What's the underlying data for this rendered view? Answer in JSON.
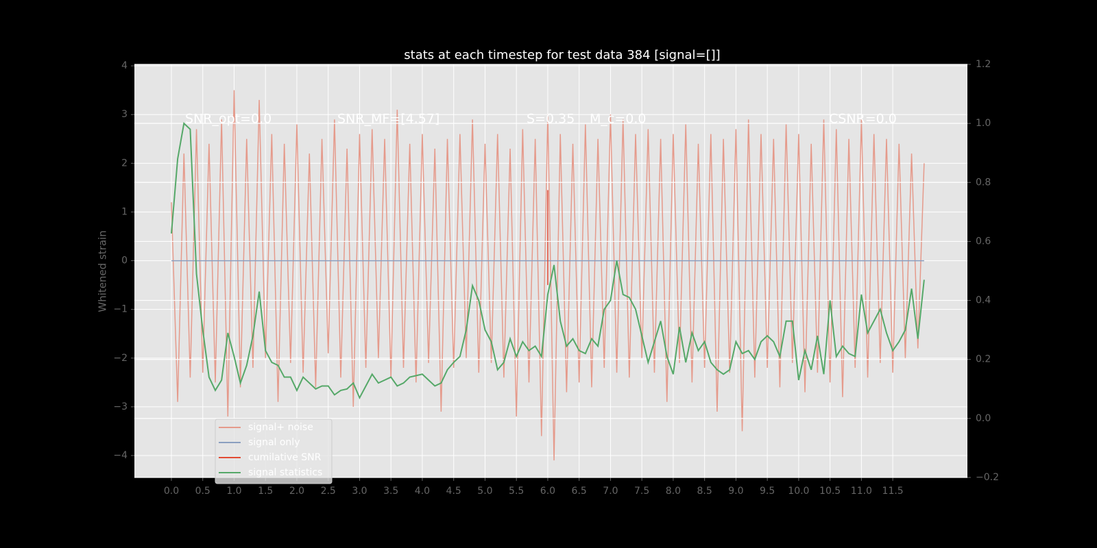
{
  "chart_data": {
    "type": "line",
    "title": "stats at each timestep for test data 384 [signal=[]]",
    "ylabel": "Whitened strain",
    "annotations": [
      "SNR_opt=0.0",
      "SNR_MF=[4.57]",
      "S=0.35",
      "M_c=0.0",
      "CSNR=0.0"
    ],
    "xlim": [
      -0.59,
      12.69
    ],
    "ylim": [
      -4.45,
      4.03
    ],
    "y2lim": [
      -0.2,
      1.2
    ],
    "grid": true,
    "legend": "lower left",
    "xticks": [
      {
        "value": 0,
        "label": "0.0"
      },
      {
        "value": 0.5,
        "label": "0.5"
      },
      {
        "value": 1,
        "label": "1.0"
      },
      {
        "value": 1.5,
        "label": "1.5"
      },
      {
        "value": 2,
        "label": "2.0"
      },
      {
        "value": 2.5,
        "label": "2.5"
      },
      {
        "value": 3,
        "label": "3.0"
      },
      {
        "value": 3.5,
        "label": "3.5"
      },
      {
        "value": 4,
        "label": "4.0"
      },
      {
        "value": 4.5,
        "label": "4.5"
      },
      {
        "value": 5,
        "label": "5.0"
      },
      {
        "value": 5.5,
        "label": "5.5"
      },
      {
        "value": 6,
        "label": "6.0"
      },
      {
        "value": 6.5,
        "label": "6.5"
      },
      {
        "value": 7,
        "label": "7.0"
      },
      {
        "value": 7.5,
        "label": "7.5"
      },
      {
        "value": 8,
        "label": "8.0"
      },
      {
        "value": 8.5,
        "label": "8.5"
      },
      {
        "value": 9,
        "label": "9.0"
      },
      {
        "value": 9.5,
        "label": "9.5"
      },
      {
        "value": 10,
        "label": "10.0"
      },
      {
        "value": 10.5,
        "label": "10.5"
      },
      {
        "value": 11,
        "label": "11.0"
      },
      {
        "value": 11.5,
        "label": "11.5"
      }
    ],
    "yticks": [
      {
        "value": -4,
        "label": "−4"
      },
      {
        "value": -3,
        "label": "−3"
      },
      {
        "value": -2,
        "label": "−2"
      },
      {
        "value": -1,
        "label": "−1"
      },
      0,
      1,
      2,
      3,
      4
    ],
    "y2ticks": [
      {
        "value": -0.2,
        "label": "−0.2"
      },
      {
        "value": 0,
        "label": "0.0"
      },
      0.2,
      0.4,
      0.6,
      0.8,
      {
        "value": 1,
        "label": "1.0"
      },
      1.2
    ],
    "x": [
      0,
      0.1,
      0.2,
      0.3,
      0.4,
      0.5,
      0.6,
      0.7,
      0.8,
      0.9,
      1,
      1.1,
      1.2,
      1.3,
      1.4,
      1.5,
      1.6,
      1.7,
      1.8,
      1.9,
      2,
      2.1,
      2.2,
      2.3,
      2.4,
      2.5,
      2.6,
      2.7,
      2.8,
      2.9,
      3,
      3.1,
      3.2,
      3.3,
      3.4,
      3.5,
      3.6,
      3.7,
      3.8,
      3.9,
      4,
      4.1,
      4.2,
      4.3,
      4.4,
      4.5,
      4.6,
      4.7,
      4.8,
      4.9,
      5,
      5.1,
      5.2,
      5.3,
      5.4,
      5.5,
      5.6,
      5.7,
      5.8,
      5.9,
      6,
      6.1,
      6.2,
      6.3,
      6.4,
      6.5,
      6.6,
      6.7,
      6.8,
      6.9,
      7,
      7.1,
      7.2,
      7.3,
      7.4,
      7.5,
      7.6,
      7.7,
      7.8,
      7.9,
      8,
      8.1,
      8.2,
      8.3,
      8.4,
      8.5,
      8.6,
      8.7,
      8.8,
      8.9,
      9,
      9.1,
      9.2,
      9.3,
      9.4,
      9.5,
      9.6,
      9.7,
      9.8,
      9.9,
      10,
      10.1,
      10.2,
      10.3,
      10.4,
      10.5,
      10.6,
      10.7,
      10.8,
      10.9,
      11,
      11.1,
      11.2,
      11.3,
      11.4,
      11.5,
      11.6,
      11.7,
      11.8,
      11.9,
      12
    ],
    "series": [
      {
        "name": "signal+ noise",
        "color": "#e59a8b",
        "values": [
          1.2,
          -2.9,
          2.2,
          -2.4,
          2.7,
          -2.3,
          2.4,
          -2.5,
          2.9,
          -3.2,
          3.5,
          -2.6,
          2.5,
          -2.2,
          3.3,
          -2.0,
          2.6,
          -2.9,
          2.4,
          -2.1,
          2.8,
          -2.3,
          2.2,
          -2.6,
          2.5,
          -1.9,
          2.9,
          -2.4,
          2.3,
          -3.0,
          2.6,
          -2.2,
          2.7,
          -2.0,
          2.5,
          -2.4,
          3.1,
          -2.2,
          2.4,
          -2.5,
          2.6,
          -2.1,
          2.3,
          -3.1,
          2.5,
          -2.2,
          2.6,
          -2.0,
          2.9,
          -2.3,
          2.4,
          -2.1,
          2.6,
          -2.4,
          2.3,
          -3.2,
          2.7,
          -2.5,
          2.5,
          -3.6,
          3.0,
          -4.1,
          2.6,
          -2.7,
          2.4,
          -2.5,
          2.8,
          -2.6,
          2.5,
          -2.2,
          3.0,
          -2.3,
          2.9,
          -2.4,
          2.6,
          -2.0,
          2.7,
          -2.3,
          2.5,
          -2.9,
          2.6,
          -2.1,
          2.8,
          -2.5,
          2.4,
          -2.2,
          2.6,
          -3.1,
          2.5,
          -2.3,
          2.7,
          -3.5,
          2.9,
          -2.4,
          2.6,
          -2.2,
          2.5,
          -2.6,
          2.8,
          -2.1,
          2.6,
          -2.7,
          2.4,
          -2.3,
          2.9,
          -2.5,
          2.7,
          -2.8,
          2.5,
          -2.2,
          2.9,
          -2.4,
          2.6,
          -2.1,
          2.5,
          -2.3,
          2.4,
          -2.0,
          2.2,
          -1.8,
          2.0
        ]
      },
      {
        "name": "signal only",
        "color": "#8a9fc0",
        "x": [
          0,
          12
        ],
        "values": [
          0,
          0
        ]
      },
      {
        "name": "cumilative SNR",
        "color": "#e24a33",
        "x": [
          6,
          6
        ],
        "values": [
          1.45,
          -0.5
        ]
      },
      {
        "name": "signal statistics",
        "color": "#55a868",
        "axis": "y2",
        "values": [
          0.627,
          0.88,
          1.0,
          0.98,
          0.49,
          0.3,
          0.14,
          0.095,
          0.13,
          0.29,
          0.21,
          0.12,
          0.18,
          0.28,
          0.43,
          0.23,
          0.19,
          0.18,
          0.14,
          0.14,
          0.095,
          0.14,
          0.12,
          0.1,
          0.11,
          0.11,
          0.08,
          0.095,
          0.1,
          0.12,
          0.07,
          0.11,
          0.15,
          0.12,
          0.13,
          0.14,
          0.11,
          0.12,
          0.14,
          0.145,
          0.15,
          0.13,
          0.11,
          0.12,
          0.165,
          0.19,
          0.21,
          0.3,
          0.45,
          0.4,
          0.3,
          0.26,
          0.165,
          0.19,
          0.27,
          0.21,
          0.26,
          0.23,
          0.245,
          0.21,
          0.42,
          0.52,
          0.33,
          0.245,
          0.27,
          0.23,
          0.22,
          0.27,
          0.245,
          0.37,
          0.4,
          0.535,
          0.42,
          0.41,
          0.37,
          0.28,
          0.19,
          0.26,
          0.33,
          0.21,
          0.15,
          0.31,
          0.19,
          0.29,
          0.23,
          0.26,
          0.19,
          0.165,
          0.15,
          0.165,
          0.26,
          0.22,
          0.23,
          0.2,
          0.26,
          0.28,
          0.26,
          0.21,
          0.33,
          0.33,
          0.13,
          0.23,
          0.165,
          0.28,
          0.15,
          0.4,
          0.21,
          0.245,
          0.22,
          0.21,
          0.42,
          0.29,
          0.33,
          0.37,
          0.29,
          0.23,
          0.26,
          0.3,
          0.44,
          0.27,
          0.47
        ]
      }
    ]
  }
}
